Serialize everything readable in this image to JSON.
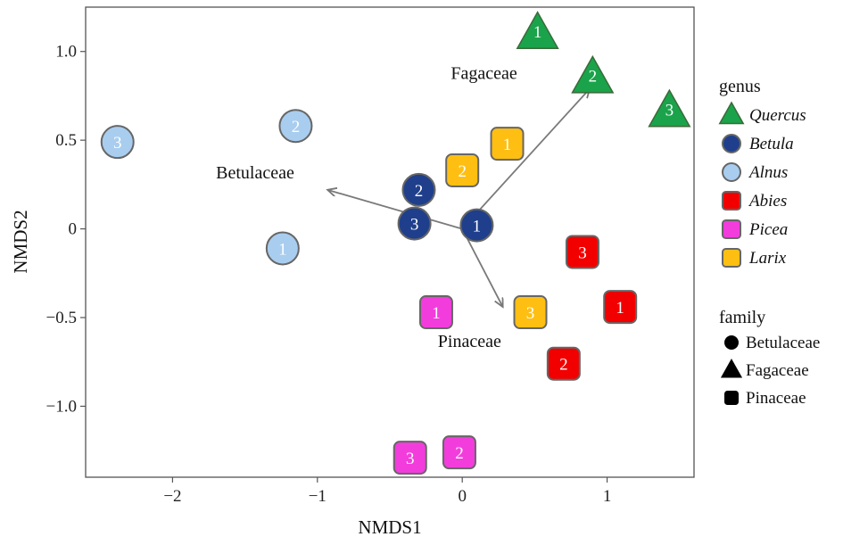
{
  "chart_data": {
    "type": "scatter",
    "xlabel": "NMDS1",
    "ylabel": "NMDS2",
    "xlim": [
      -2.6,
      1.6
    ],
    "ylim": [
      -1.4,
      1.25
    ],
    "xticks": [
      -2,
      -1,
      0,
      1
    ],
    "yticks": [
      1.0,
      0.5,
      0,
      -0.5,
      -1.0
    ],
    "xtick_labels": [
      "−2",
      "−1",
      "0",
      "1"
    ],
    "ytick_labels": [
      "1.0",
      "0.5",
      "0",
      "−0.5",
      "−1.0"
    ],
    "grid": false,
    "legend_position": "right",
    "points": [
      {
        "genus": "Quercus",
        "family": "Fagaceae",
        "label": "1",
        "x": 0.52,
        "y": 1.1
      },
      {
        "genus": "Quercus",
        "family": "Fagaceae",
        "label": "2",
        "x": 0.9,
        "y": 0.85
      },
      {
        "genus": "Quercus",
        "family": "Fagaceae",
        "label": "3",
        "x": 1.43,
        "y": 0.66
      },
      {
        "genus": "Betula",
        "family": "Betulaceae",
        "label": "2",
        "x": -0.3,
        "y": 0.22
      },
      {
        "genus": "Betula",
        "family": "Betulaceae",
        "label": "3",
        "x": -0.33,
        "y": 0.03
      },
      {
        "genus": "Betula",
        "family": "Betulaceae",
        "label": "1",
        "x": 0.1,
        "y": 0.02
      },
      {
        "genus": "Alnus",
        "family": "Betulaceae",
        "label": "3",
        "x": -2.38,
        "y": 0.49
      },
      {
        "genus": "Alnus",
        "family": "Betulaceae",
        "label": "2",
        "x": -1.15,
        "y": 0.58
      },
      {
        "genus": "Alnus",
        "family": "Betulaceae",
        "label": "1",
        "x": -1.24,
        "y": -0.11
      },
      {
        "genus": "Abies",
        "family": "Pinaceae",
        "label": "3",
        "x": 0.83,
        "y": -0.13
      },
      {
        "genus": "Abies",
        "family": "Pinaceae",
        "label": "1",
        "x": 1.09,
        "y": -0.44
      },
      {
        "genus": "Abies",
        "family": "Pinaceae",
        "label": "2",
        "x": 0.7,
        "y": -0.76
      },
      {
        "genus": "Picea",
        "family": "Pinaceae",
        "label": "1",
        "x": -0.18,
        "y": -0.47
      },
      {
        "genus": "Picea",
        "family": "Pinaceae",
        "label": "2",
        "x": -0.02,
        "y": -1.26
      },
      {
        "genus": "Picea",
        "family": "Pinaceae",
        "label": "3",
        "x": -0.36,
        "y": -1.29
      },
      {
        "genus": "Larix",
        "family": "Pinaceae",
        "label": "1",
        "x": 0.31,
        "y": 0.48
      },
      {
        "genus": "Larix",
        "family": "Pinaceae",
        "label": "2",
        "x": 0.0,
        "y": 0.33
      },
      {
        "genus": "Larix",
        "family": "Pinaceae",
        "label": "3",
        "x": 0.47,
        "y": -0.47
      }
    ],
    "vectors": [
      {
        "name": "Fagaceae",
        "x0": 0.0,
        "y0": 0.0,
        "x1": 0.88,
        "y1": 0.79
      },
      {
        "name": "Betulaceae",
        "x0": 0.0,
        "y0": 0.0,
        "x1": -0.93,
        "y1": 0.22
      },
      {
        "name": "Pinaceae",
        "x0": 0.0,
        "y0": 0.0,
        "x1": 0.28,
        "y1": -0.44
      }
    ],
    "vector_labels": [
      {
        "text": "Fagaceae",
        "x": 0.15,
        "y": 0.88
      },
      {
        "text": "Betulaceae",
        "x": -1.43,
        "y": 0.32
      },
      {
        "text": "Pinaceae",
        "x": 0.05,
        "y": -0.63
      }
    ],
    "legend_genus": {
      "title": "genus",
      "items": [
        {
          "name": "Quercus",
          "shape": "triangle",
          "color": "#1aa34a"
        },
        {
          "name": "Betula",
          "shape": "circle",
          "color": "#1f3f8c"
        },
        {
          "name": "Alnus",
          "shape": "circle",
          "color": "#a9cdef"
        },
        {
          "name": "Abies",
          "shape": "square",
          "color": "#f20000"
        },
        {
          "name": "Picea",
          "shape": "square",
          "color": "#f23ddc"
        },
        {
          "name": "Larix",
          "shape": "square",
          "color": "#ffbf12"
        }
      ]
    },
    "legend_family": {
      "title": "family",
      "items": [
        {
          "name": "Betulaceae",
          "shape": "circle"
        },
        {
          "name": "Fagaceae",
          "shape": "triangle"
        },
        {
          "name": "Pinaceae",
          "shape": "square"
        }
      ]
    }
  }
}
